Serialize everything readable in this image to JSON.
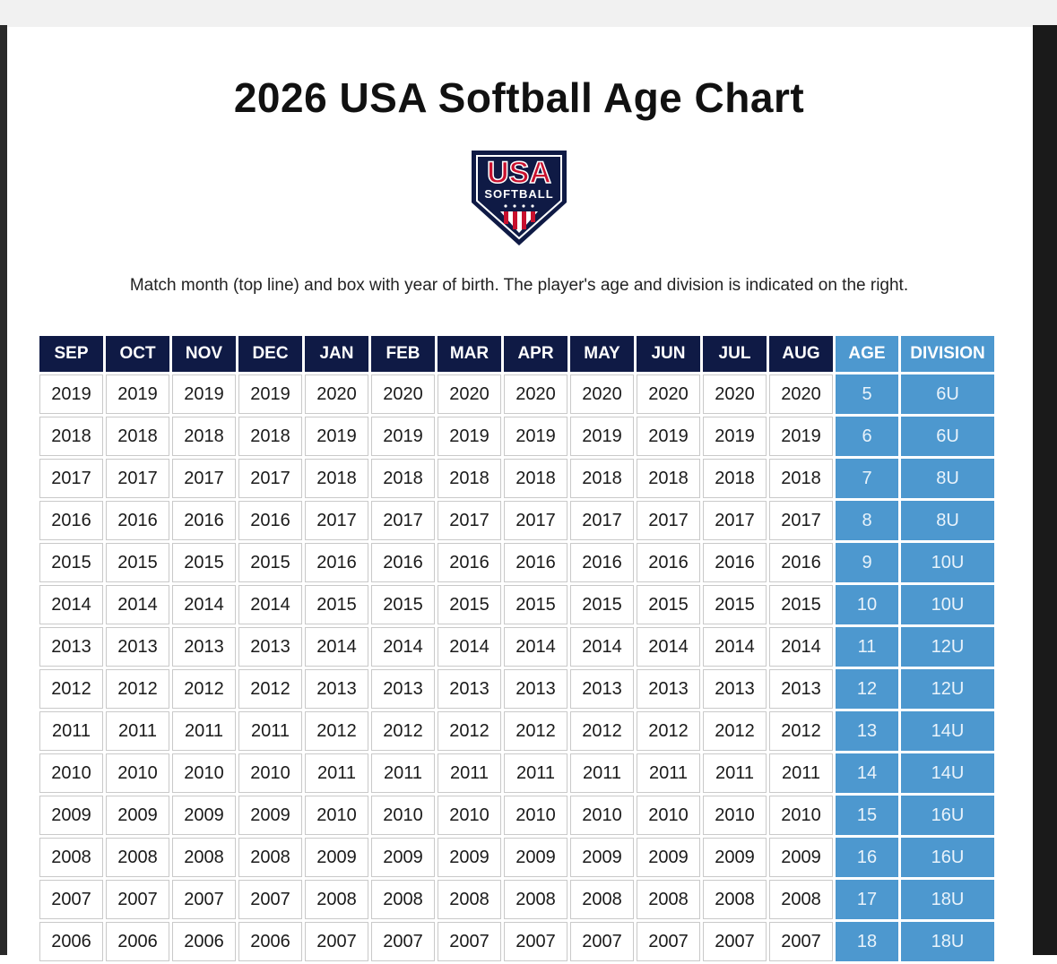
{
  "title": "2026 USA Softball Age Chart",
  "logo": {
    "name": "USA Softball logo",
    "text_top": "USA",
    "text_bottom": "SOFTBALL",
    "colors": {
      "navy": "#0f1a45",
      "red": "#c8102e",
      "white": "#ffffff"
    }
  },
  "instructions": "Match month (top line) and box with year of birth. The player's age and division is indicated on the right.",
  "colors": {
    "header_navy": "#0f1a45",
    "accent_blue": "#4d98cf"
  },
  "table": {
    "headers": [
      "SEP",
      "OCT",
      "NOV",
      "DEC",
      "JAN",
      "FEB",
      "MAR",
      "APR",
      "MAY",
      "JUN",
      "JUL",
      "AUG",
      "AGE",
      "DIVISION"
    ],
    "rows": [
      [
        "2019",
        "2019",
        "2019",
        "2019",
        "2020",
        "2020",
        "2020",
        "2020",
        "2020",
        "2020",
        "2020",
        "2020",
        "5",
        "6U"
      ],
      [
        "2018",
        "2018",
        "2018",
        "2018",
        "2019",
        "2019",
        "2019",
        "2019",
        "2019",
        "2019",
        "2019",
        "2019",
        "6",
        "6U"
      ],
      [
        "2017",
        "2017",
        "2017",
        "2017",
        "2018",
        "2018",
        "2018",
        "2018",
        "2018",
        "2018",
        "2018",
        "2018",
        "7",
        "8U"
      ],
      [
        "2016",
        "2016",
        "2016",
        "2016",
        "2017",
        "2017",
        "2017",
        "2017",
        "2017",
        "2017",
        "2017",
        "2017",
        "8",
        "8U"
      ],
      [
        "2015",
        "2015",
        "2015",
        "2015",
        "2016",
        "2016",
        "2016",
        "2016",
        "2016",
        "2016",
        "2016",
        "2016",
        "9",
        "10U"
      ],
      [
        "2014",
        "2014",
        "2014",
        "2014",
        "2015",
        "2015",
        "2015",
        "2015",
        "2015",
        "2015",
        "2015",
        "2015",
        "10",
        "10U"
      ],
      [
        "2013",
        "2013",
        "2013",
        "2013",
        "2014",
        "2014",
        "2014",
        "2014",
        "2014",
        "2014",
        "2014",
        "2014",
        "11",
        "12U"
      ],
      [
        "2012",
        "2012",
        "2012",
        "2012",
        "2013",
        "2013",
        "2013",
        "2013",
        "2013",
        "2013",
        "2013",
        "2013",
        "12",
        "12U"
      ],
      [
        "2011",
        "2011",
        "2011",
        "2011",
        "2012",
        "2012",
        "2012",
        "2012",
        "2012",
        "2012",
        "2012",
        "2012",
        "13",
        "14U"
      ],
      [
        "2010",
        "2010",
        "2010",
        "2010",
        "2011",
        "2011",
        "2011",
        "2011",
        "2011",
        "2011",
        "2011",
        "2011",
        "14",
        "14U"
      ],
      [
        "2009",
        "2009",
        "2009",
        "2009",
        "2010",
        "2010",
        "2010",
        "2010",
        "2010",
        "2010",
        "2010",
        "2010",
        "15",
        "16U"
      ],
      [
        "2008",
        "2008",
        "2008",
        "2008",
        "2009",
        "2009",
        "2009",
        "2009",
        "2009",
        "2009",
        "2009",
        "2009",
        "16",
        "16U"
      ],
      [
        "2007",
        "2007",
        "2007",
        "2007",
        "2008",
        "2008",
        "2008",
        "2008",
        "2008",
        "2008",
        "2008",
        "2008",
        "17",
        "18U"
      ],
      [
        "2006",
        "2006",
        "2006",
        "2006",
        "2007",
        "2007",
        "2007",
        "2007",
        "2007",
        "2007",
        "2007",
        "2007",
        "18",
        "18U"
      ]
    ]
  }
}
